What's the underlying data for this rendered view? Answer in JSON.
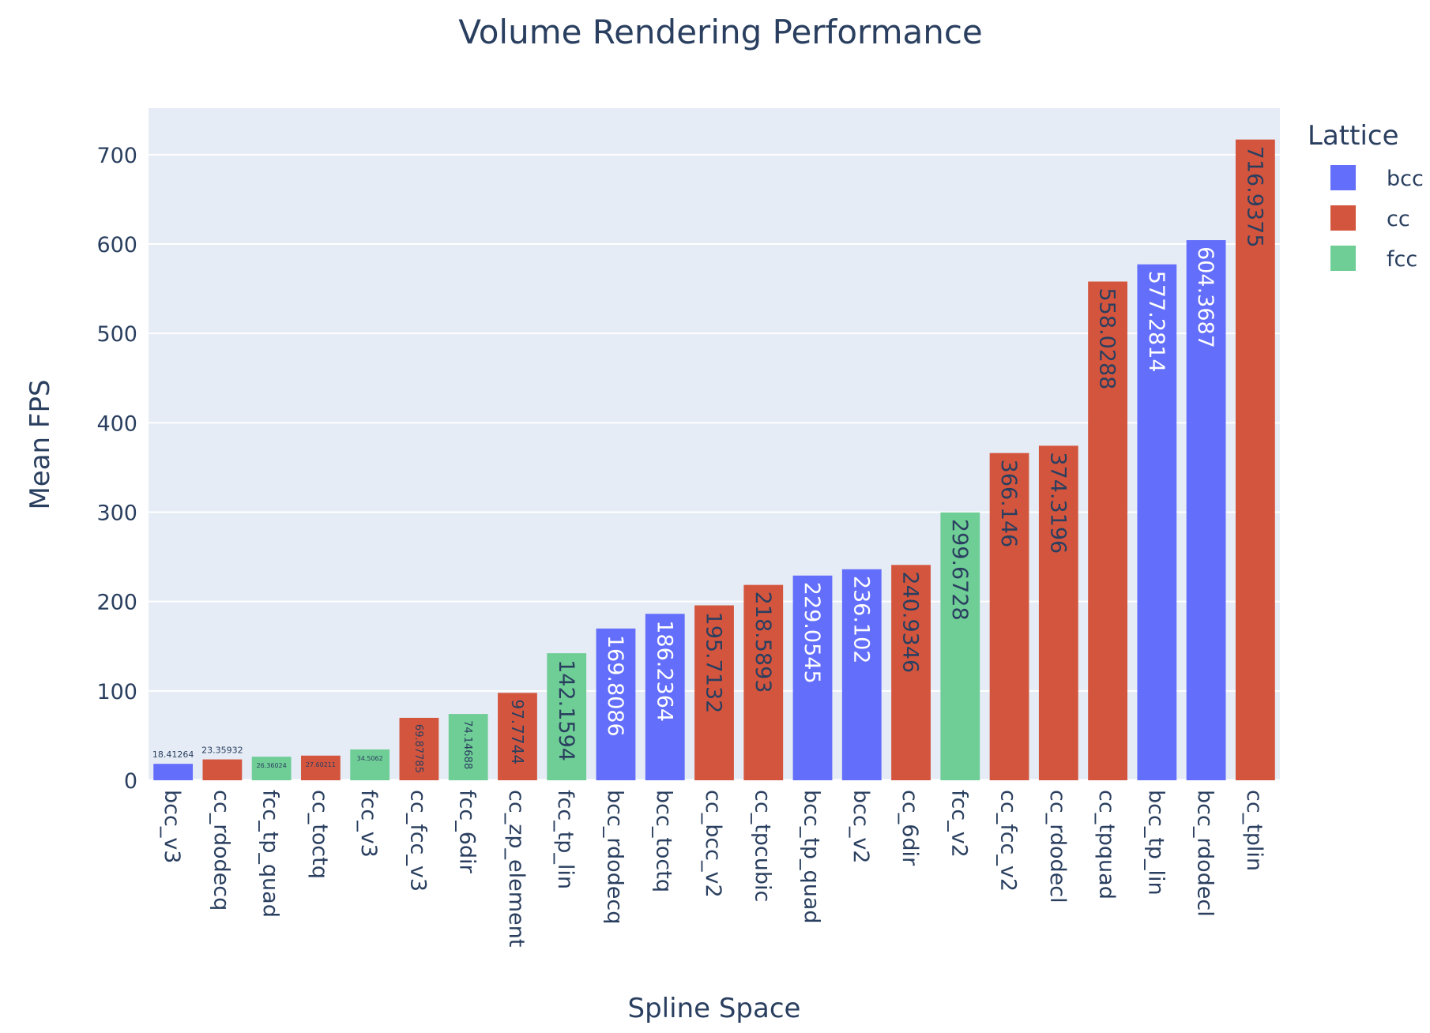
{
  "chart_data": {
    "type": "bar",
    "title": "Volume Rendering Performance",
    "xlabel": "Spline Space",
    "ylabel": "Mean FPS",
    "ylim": [
      0,
      752
    ],
    "yticks": [
      0,
      100,
      200,
      300,
      400,
      500,
      600,
      700
    ],
    "legend": {
      "title": "Lattice",
      "placement": "top-right",
      "entries": [
        {
          "name": "bcc",
          "color": "#636efa"
        },
        {
          "name": "cc",
          "color": "#d4553e"
        },
        {
          "name": "fcc",
          "color": "#6fcd96"
        }
      ]
    },
    "grid": true,
    "plot_background": "#e5ecf6",
    "bars": [
      {
        "category": "bcc_v3",
        "lattice": "bcc",
        "value": 18.41264,
        "label": "18.41264"
      },
      {
        "category": "cc_rdodecq",
        "lattice": "cc",
        "value": 23.35932,
        "label": "23.35932"
      },
      {
        "category": "fcc_tp_quad",
        "lattice": "fcc",
        "value": 26.36024,
        "label": "26.36024"
      },
      {
        "category": "cc_toctq",
        "lattice": "cc",
        "value": 27.60211,
        "label": "27.60211"
      },
      {
        "category": "fcc_v3",
        "lattice": "fcc",
        "value": 34.5062,
        "label": "34.5062"
      },
      {
        "category": "cc_fcc_v3",
        "lattice": "cc",
        "value": 69.87785,
        "label": "69.87785"
      },
      {
        "category": "fcc_6dir",
        "lattice": "fcc",
        "value": 74.14688,
        "label": "74.14688"
      },
      {
        "category": "cc_zp_element",
        "lattice": "cc",
        "value": 97.7744,
        "label": "97.7744"
      },
      {
        "category": "fcc_tp_lin",
        "lattice": "fcc",
        "value": 142.1594,
        "label": "142.1594"
      },
      {
        "category": "bcc_rdodecq",
        "lattice": "bcc",
        "value": 169.8086,
        "label": "169.8086"
      },
      {
        "category": "bcc_toctq",
        "lattice": "bcc",
        "value": 186.2364,
        "label": "186.2364"
      },
      {
        "category": "cc_bcc_v2",
        "lattice": "cc",
        "value": 195.7132,
        "label": "195.7132"
      },
      {
        "category": "cc_tpcubic",
        "lattice": "cc",
        "value": 218.5893,
        "label": "218.5893"
      },
      {
        "category": "bcc_tp_quad",
        "lattice": "bcc",
        "value": 229.0545,
        "label": "229.0545"
      },
      {
        "category": "bcc_v2",
        "lattice": "bcc",
        "value": 236.102,
        "label": "236.102"
      },
      {
        "category": "cc_6dir",
        "lattice": "cc",
        "value": 240.9346,
        "label": "240.9346"
      },
      {
        "category": "fcc_v2",
        "lattice": "fcc",
        "value": 299.6728,
        "label": "299.6728"
      },
      {
        "category": "cc_fcc_v2",
        "lattice": "cc",
        "value": 366.146,
        "label": "366.146"
      },
      {
        "category": "cc_rdodecl",
        "lattice": "cc",
        "value": 374.3196,
        "label": "374.3196"
      },
      {
        "category": "cc_tpquad",
        "lattice": "cc",
        "value": 558.0288,
        "label": "558.0288"
      },
      {
        "category": "bcc_tp_lin",
        "lattice": "bcc",
        "value": 577.2814,
        "label": "577.2814"
      },
      {
        "category": "bcc_rdodecl",
        "lattice": "bcc",
        "value": 604.3687,
        "label": "604.3687"
      },
      {
        "category": "cc_tplin",
        "lattice": "cc",
        "value": 716.9375,
        "label": "716.9375"
      }
    ]
  }
}
